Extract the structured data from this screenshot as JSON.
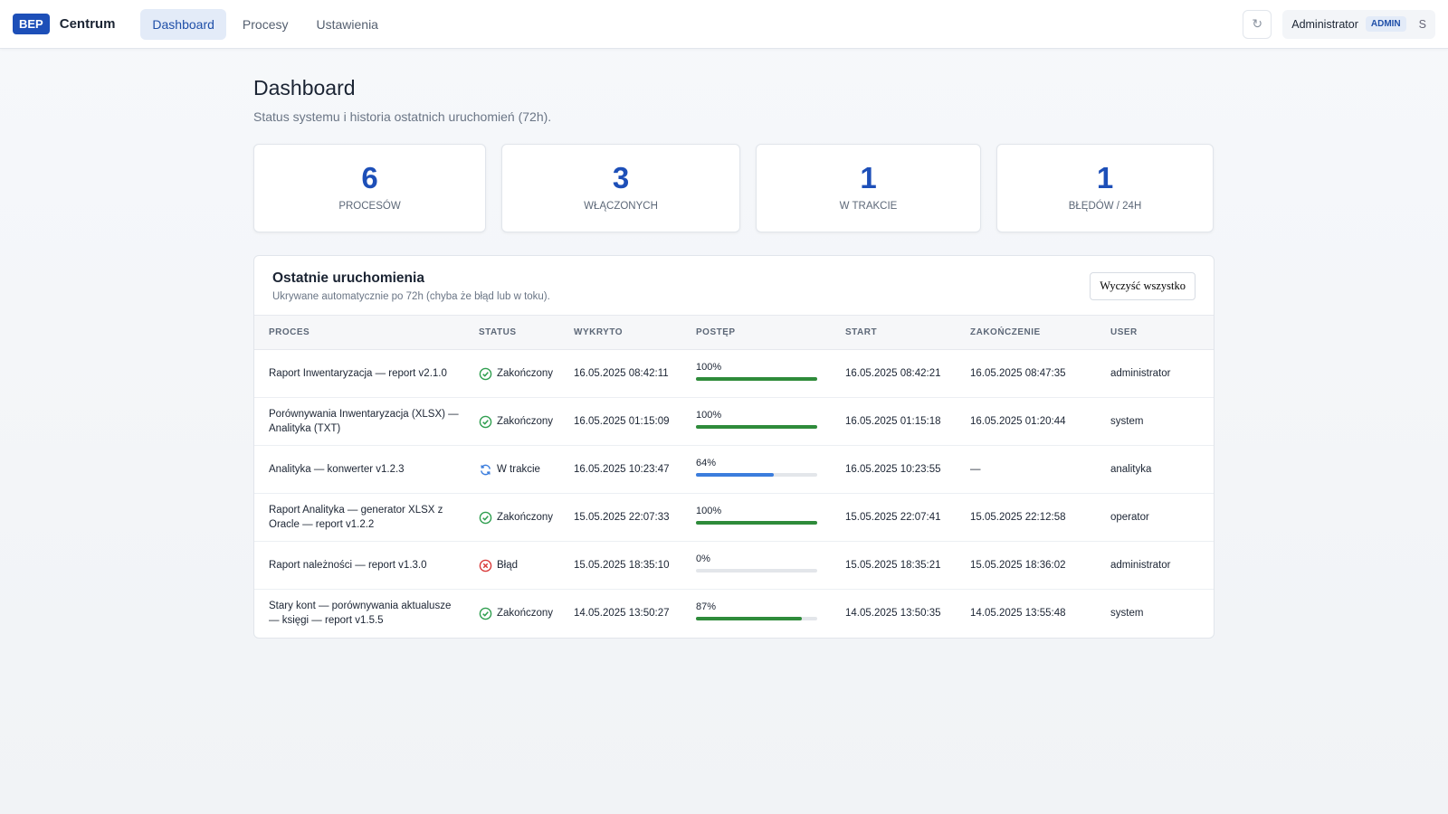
{
  "nav": {
    "brand_badge": "BEP",
    "brand": "Centrum",
    "items": [
      "Dashboard",
      "Procesy",
      "Ustawienia"
    ],
    "active": 0,
    "user": "Administrator",
    "role": "ADMIN",
    "user_initial": "S"
  },
  "header": {
    "title": "Dashboard",
    "subtitle": "Status systemu i historia ostatnich uruchomień (72h)."
  },
  "stats": [
    {
      "value": 6,
      "label": "PROCESÓW"
    },
    {
      "value": 3,
      "label": "WŁĄCZONYCH"
    },
    {
      "value": 1,
      "label": "W TRAKCIE"
    },
    {
      "value": 1,
      "label": "BŁĘDÓW / 24H"
    }
  ],
  "runs": {
    "title": "Ostatnie uruchomienia",
    "subtitle": "Ukrywane automatycznie po 72h (chyba że błąd lub w toku).",
    "button": "Wyczyść wszystko",
    "columns": [
      "PROCES",
      "STATUS",
      "WYKRYTO",
      "POSTĘP",
      "START",
      "ZAKOŃCZENIE",
      "USER"
    ],
    "progress_range": [
      0,
      100
    ],
    "rows": [
      {
        "process": "Raport Inwentaryzacja — report v2.1.0",
        "status": "Zakończony",
        "status_icon": "check",
        "status_color": "#2f9e4f",
        "detected": "16.05.2025 08:42:11",
        "progress": 100,
        "progress_label": "100%",
        "bar_color": "#2e8b3a",
        "start": "16.05.2025 08:42:21",
        "end": "16.05.2025 08:47:35",
        "user": "administrator"
      },
      {
        "process": "Porównywania Inwentaryzacja (XLSX) — Analityka (TXT)",
        "status": "Zakończony",
        "status_icon": "check",
        "status_color": "#2f9e4f",
        "detected": "16.05.2025 01:15:09",
        "progress": 100,
        "progress_label": "100%",
        "bar_color": "#2e8b3a",
        "start": "16.05.2025 01:15:18",
        "end": "16.05.2025 01:20:44",
        "user": "system"
      },
      {
        "process": "Analityka — konwerter v1.2.3",
        "status": "W trakcie",
        "status_icon": "sync",
        "status_color": "#3b7ddd",
        "detected": "16.05.2025 10:23:47",
        "progress": 64,
        "progress_label": "64%",
        "bar_color": "#3b7ddd",
        "start": "16.05.2025 10:23:55",
        "end": "—",
        "user": "analityka"
      },
      {
        "process": "Raport Analityka — generator XLSX z Oracle — report v1.2.2",
        "status": "Zakończony",
        "status_icon": "check",
        "status_color": "#2f9e4f",
        "detected": "15.05.2025 22:07:33",
        "progress": 100,
        "progress_label": "100%",
        "bar_color": "#2e8b3a",
        "start": "15.05.2025 22:07:41",
        "end": "15.05.2025 22:12:58",
        "user": "operator"
      },
      {
        "process": "Raport należności — report v1.3.0",
        "status": "Błąd",
        "status_icon": "error",
        "status_color": "#d93b3b",
        "detected": "15.05.2025 18:35:10",
        "progress": 0,
        "progress_label": "0%",
        "bar_color": "#2e8b3a",
        "start": "15.05.2025 18:35:21",
        "end": "15.05.2025 18:36:02",
        "user": "administrator"
      },
      {
        "process": "Stary kont — porównywania aktualusze — księgi — report v1.5.5",
        "status": "Zakończony",
        "status_icon": "check",
        "status_color": "#2f9e4f",
        "detected": "14.05.2025 13:50:27",
        "progress": 87,
        "progress_label": "87%",
        "bar_color": "#2e8b3a",
        "start": "14.05.2025 13:50:35",
        "end": "14.05.2025 13:55:48",
        "user": "system"
      }
    ]
  }
}
